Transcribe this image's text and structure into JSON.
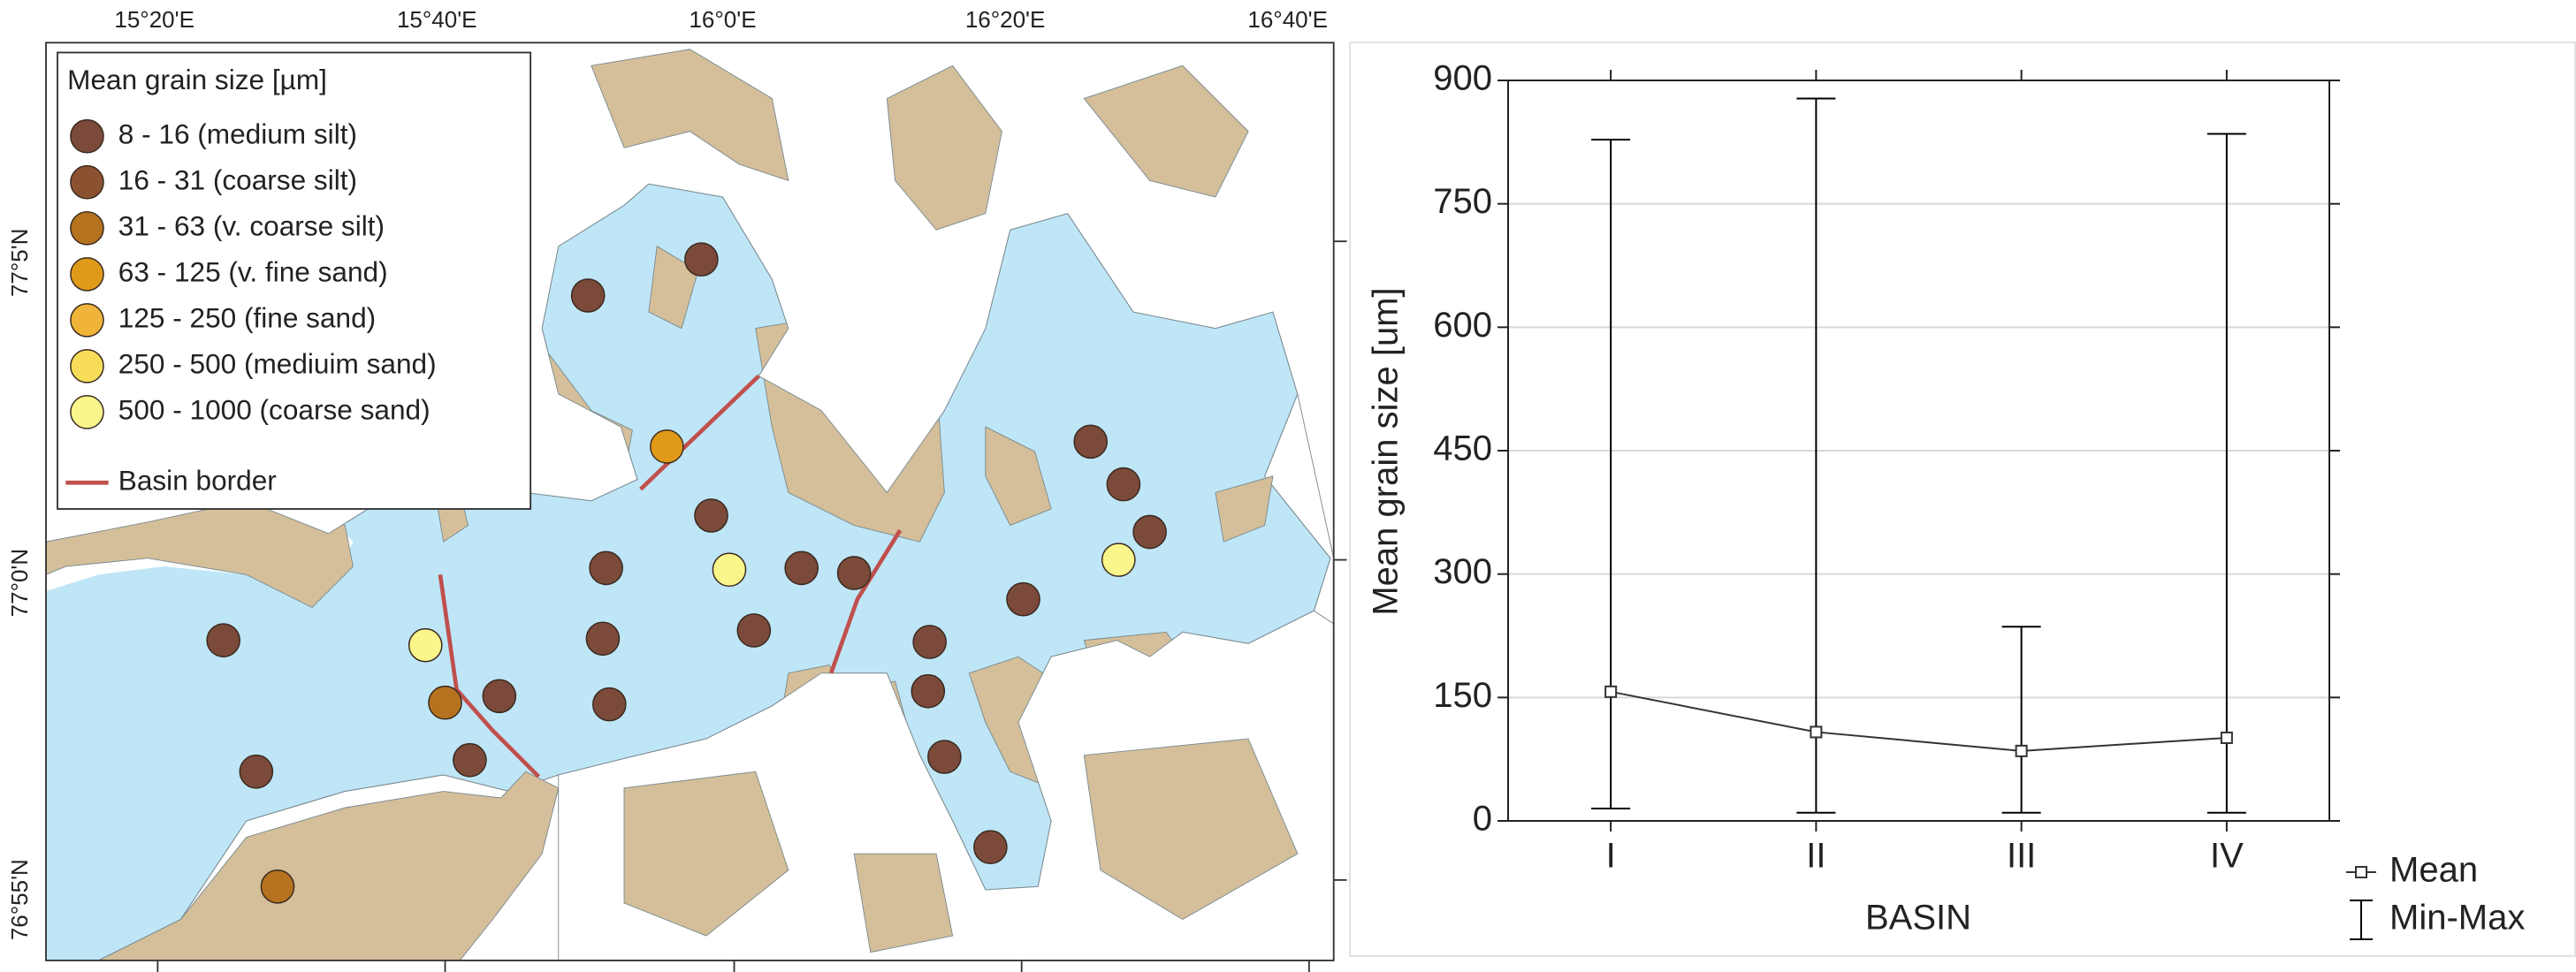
{
  "map": {
    "lon_labels": [
      "15°20'E",
      "15°40'E",
      "16°0'E",
      "16°20'E",
      "16°40'E"
    ],
    "lat_labels": [
      "77°5'N",
      "77°0'N",
      "76°55'N"
    ],
    "legend": {
      "title": "Mean grain size [µm]",
      "items": [
        {
          "label": "8 - 16 (medium silt)",
          "color": "#7b4a3a"
        },
        {
          "label": "16 - 31 (coarse silt)",
          "color": "#8b5232"
        },
        {
          "label": "31 - 63 (v. coarse silt)",
          "color": "#b5721f"
        },
        {
          "label": "63 - 125 (v. fine sand)",
          "color": "#e09a1a"
        },
        {
          "label": "125 - 250 (fine sand)",
          "color": "#f0b43a"
        },
        {
          "label": "250 - 500 (mediuim sand)",
          "color": "#f7dc5a"
        },
        {
          "label": "500 - 1000 (coarse sand)",
          "color": "#fbf68c"
        }
      ],
      "border_label": "Basin border",
      "border_color": "#c0504d"
    }
  },
  "chart_data": {
    "type": "line",
    "categories": [
      "I",
      "II",
      "III",
      "IV"
    ],
    "series": [
      {
        "name": "Mean",
        "color": "#333333",
        "values": [
          157,
          108,
          85,
          101
        ]
      },
      {
        "name": "Min-Max",
        "color": "#000000",
        "low": [
          15,
          10,
          10,
          10
        ],
        "high": [
          828,
          878,
          236,
          835
        ]
      }
    ],
    "ylim": [
      0,
      900
    ],
    "yticks": [
      0,
      150,
      300,
      450,
      600,
      750,
      900
    ],
    "grid": true,
    "x_label": "BASIN",
    "y_label": "Mean grain size [um]"
  }
}
